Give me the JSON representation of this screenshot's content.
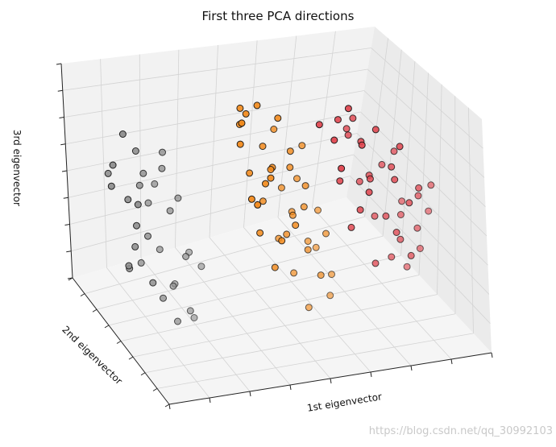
{
  "chart_data": {
    "type": "scatter",
    "title": "First three PCA directions",
    "xlabel": "1st eigenvector",
    "ylabel": "2nd eigenvector",
    "zlabel": "3rd eigenvector",
    "projection": "3d",
    "grid": true,
    "tick_labels_shown": false,
    "colors": {
      "setosa": "#8c8c8c",
      "versicolor": "#f28a1c",
      "virginica": "#e0454f"
    },
    "series": [
      {
        "key": "setosa",
        "points": [
          [
            -2.6,
            -0.3,
            0.5
          ],
          [
            -2.9,
            0.2,
            0.4
          ],
          [
            -2.5,
            0.6,
            0.3
          ],
          [
            -3.0,
            -0.6,
            0.1
          ],
          [
            -2.4,
            0.9,
            0.0
          ],
          [
            -2.7,
            0.1,
            -0.1
          ],
          [
            -3.1,
            0.4,
            -0.2
          ],
          [
            -2.8,
            -0.2,
            -0.3
          ],
          [
            -2.5,
            1.1,
            -0.4
          ],
          [
            -2.9,
            0.7,
            0.6
          ],
          [
            -2.6,
            1.3,
            0.2
          ],
          [
            -3.2,
            -0.4,
            0.3
          ],
          [
            -2.7,
            0.5,
            -0.5
          ],
          [
            -2.4,
            0.3,
            0.7
          ],
          [
            -2.8,
            1.0,
            -0.2
          ],
          [
            -2.6,
            -0.7,
            0.5
          ],
          [
            -3.0,
            0.9,
            0.1
          ],
          [
            -2.5,
            -0.1,
            -0.6
          ],
          [
            -2.9,
            1.2,
            -0.1
          ],
          [
            -2.7,
            -0.5,
            0.0
          ],
          [
            -2.3,
            0.6,
            0.4
          ],
          [
            -3.1,
            0.0,
            -0.4
          ],
          [
            -2.6,
            0.8,
            -0.6
          ],
          [
            -2.8,
            -0.8,
            0.2
          ],
          [
            -2.4,
            1.4,
            0.1
          ],
          [
            -2.9,
            -0.3,
            -0.5
          ],
          [
            -2.7,
            1.5,
            -0.3
          ],
          [
            -2.5,
            0.4,
            0.6
          ],
          [
            -3.0,
            0.6,
            0.4
          ],
          [
            -2.6,
            -0.4,
            -0.2
          ],
          [
            -2.8,
            0.2,
            0.5
          ],
          [
            -2.4,
            -0.6,
            -0.1
          ]
        ]
      },
      {
        "key": "versicolor",
        "points": [
          [
            0.5,
            -0.6,
            0.6
          ],
          [
            0.3,
            -0.2,
            0.4
          ],
          [
            0.7,
            0.1,
            0.3
          ],
          [
            0.2,
            -0.8,
            0.2
          ],
          [
            0.6,
            -0.4,
            0.1
          ],
          [
            0.1,
            0.0,
            0.0
          ],
          [
            0.8,
            -0.7,
            -0.1
          ],
          [
            0.4,
            0.3,
            -0.2
          ],
          [
            0.0,
            -0.5,
            0.5
          ],
          [
            0.9,
            -0.1,
            -0.3
          ],
          [
            0.2,
            0.5,
            0.3
          ],
          [
            0.6,
            -0.9,
            -0.4
          ],
          [
            0.3,
            0.2,
            0.7
          ],
          [
            0.7,
            -0.3,
            -0.5
          ],
          [
            0.1,
            -0.6,
            0.6
          ],
          [
            0.5,
            0.4,
            0.0
          ],
          [
            0.8,
            0.0,
            0.4
          ],
          [
            0.0,
            0.6,
            -0.1
          ],
          [
            0.4,
            -1.0,
            0.3
          ],
          [
            0.9,
            0.3,
            0.2
          ],
          [
            0.2,
            -0.3,
            -0.4
          ],
          [
            0.6,
            0.7,
            -0.2
          ],
          [
            0.3,
            -0.7,
            0.5
          ],
          [
            0.7,
            0.5,
            0.1
          ],
          [
            0.1,
            0.9,
            -0.3
          ],
          [
            0.5,
            -0.2,
            0.2
          ],
          [
            0.8,
            0.8,
            -0.4
          ],
          [
            0.4,
            1.0,
            0.0
          ],
          [
            0.2,
            1.2,
            -0.5
          ],
          [
            0.6,
            1.1,
            0.3
          ],
          [
            0.3,
            0.0,
            -0.6
          ],
          [
            0.9,
            -0.5,
            0.5
          ],
          [
            0.5,
            0.6,
            0.4
          ],
          [
            0.1,
            -0.4,
            0.1
          ],
          [
            0.7,
            1.3,
            -0.2
          ],
          [
            0.4,
            -0.8,
            -0.3
          ],
          [
            0.8,
            0.4,
            0.6
          ],
          [
            0.2,
            0.8,
            0.2
          ],
          [
            0.6,
            -0.6,
            -0.1
          ],
          [
            0.3,
            1.4,
            0.1
          ],
          [
            0.9,
            0.9,
            0.0
          ],
          [
            0.5,
            1.5,
            -0.3
          ]
        ]
      },
      {
        "key": "virginica",
        "points": [
          [
            2.3,
            -0.5,
            0.4
          ],
          [
            2.6,
            -0.2,
            0.3
          ],
          [
            2.1,
            0.1,
            0.5
          ],
          [
            2.9,
            -0.6,
            0.1
          ],
          [
            2.4,
            0.3,
            0.2
          ],
          [
            2.7,
            -0.1,
            0.0
          ],
          [
            2.2,
            -0.4,
            -0.1
          ],
          [
            3.0,
            0.2,
            0.2
          ],
          [
            2.5,
            0.6,
            0.4
          ],
          [
            2.8,
            -0.3,
            -0.2
          ],
          [
            2.0,
            -0.7,
            0.3
          ],
          [
            3.2,
            0.0,
            0.0
          ],
          [
            2.6,
            0.5,
            -0.1
          ],
          [
            2.3,
            0.0,
            0.6
          ],
          [
            2.9,
            0.4,
            -0.3
          ],
          [
            2.4,
            -0.8,
            0.1
          ],
          [
            3.1,
            -0.4,
            0.3
          ],
          [
            2.2,
            0.7,
            0.0
          ],
          [
            2.7,
            0.8,
            -0.2
          ],
          [
            2.5,
            -0.2,
            -0.3
          ],
          [
            3.3,
            0.3,
            -0.1
          ],
          [
            2.1,
            0.4,
            0.2
          ],
          [
            2.8,
            0.6,
            0.5
          ],
          [
            2.4,
            0.9,
            -0.3
          ],
          [
            3.0,
            0.7,
            -0.4
          ],
          [
            2.6,
            1.0,
            0.1
          ],
          [
            2.2,
            -0.1,
            -0.4
          ],
          [
            2.9,
            1.1,
            0.0
          ],
          [
            2.5,
            1.2,
            0.3
          ],
          [
            3.4,
            0.5,
            0.1
          ],
          [
            2.7,
            -0.7,
            0.4
          ],
          [
            2.3,
            0.5,
            -0.5
          ],
          [
            3.1,
            0.9,
            0.2
          ],
          [
            2.0,
            0.2,
            0.6
          ],
          [
            2.8,
            1.3,
            -0.1
          ],
          [
            3.5,
            -0.2,
            0.2
          ],
          [
            2.4,
            1.4,
            -0.2
          ],
          [
            3.2,
            1.2,
            0.4
          ],
          [
            2.6,
            -0.9,
            -0.2
          ],
          [
            2.9,
            1.5,
            0.3
          ]
        ]
      }
    ]
  },
  "watermark": "https://blog.csdn.net/qq_30992103"
}
